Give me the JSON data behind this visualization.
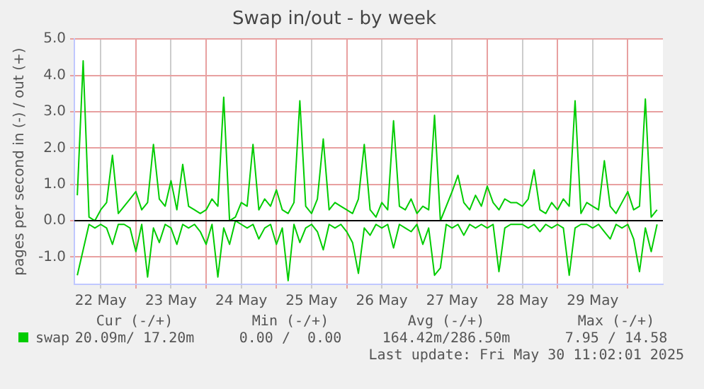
{
  "chart_data": {
    "type": "line",
    "title": "Swap in/out - by week",
    "ylabel": "pages per second in (-) / out (+)",
    "x": [
      "2025-05-22T04:00",
      "2025-05-22T06:00",
      "2025-05-22T08:00",
      "2025-05-22T10:00",
      "2025-05-22T12:00",
      "2025-05-22T14:00",
      "2025-05-22T16:00",
      "2025-05-22T18:00",
      "2025-05-22T20:00",
      "2025-05-22T22:00",
      "2025-05-23T00:00",
      "2025-05-23T02:00",
      "2025-05-23T04:00",
      "2025-05-23T06:00",
      "2025-05-23T08:00",
      "2025-05-23T10:00",
      "2025-05-23T12:00",
      "2025-05-23T14:00",
      "2025-05-23T16:00",
      "2025-05-23T18:00",
      "2025-05-23T20:00",
      "2025-05-23T22:00",
      "2025-05-24T00:00",
      "2025-05-24T02:00",
      "2025-05-24T04:00",
      "2025-05-24T06:00",
      "2025-05-24T08:00",
      "2025-05-24T10:00",
      "2025-05-24T12:00",
      "2025-05-24T14:00",
      "2025-05-24T16:00",
      "2025-05-24T18:00",
      "2025-05-24T20:00",
      "2025-05-24T22:00",
      "2025-05-25T00:00",
      "2025-05-25T02:00",
      "2025-05-25T04:00",
      "2025-05-25T06:00",
      "2025-05-25T08:00",
      "2025-05-25T10:00",
      "2025-05-25T12:00",
      "2025-05-25T14:00",
      "2025-05-25T16:00",
      "2025-05-25T18:00",
      "2025-05-25T20:00",
      "2025-05-25T22:00",
      "2025-05-26T00:00",
      "2025-05-26T02:00",
      "2025-05-26T04:00",
      "2025-05-26T06:00",
      "2025-05-26T08:00",
      "2025-05-26T10:00",
      "2025-05-26T12:00",
      "2025-05-26T14:00",
      "2025-05-26T16:00",
      "2025-05-26T18:00",
      "2025-05-26T20:00",
      "2025-05-26T22:00",
      "2025-05-27T00:00",
      "2025-05-27T02:00",
      "2025-05-27T04:00",
      "2025-05-27T06:00",
      "2025-05-27T08:00",
      "2025-05-27T10:00",
      "2025-05-27T12:00",
      "2025-05-27T14:00",
      "2025-05-27T16:00",
      "2025-05-27T18:00",
      "2025-05-27T20:00",
      "2025-05-27T22:00",
      "2025-05-28T00:00",
      "2025-05-28T02:00",
      "2025-05-28T04:00",
      "2025-05-28T06:00",
      "2025-05-28T08:00",
      "2025-05-28T10:00",
      "2025-05-28T12:00",
      "2025-05-28T14:00",
      "2025-05-28T16:00",
      "2025-05-28T18:00",
      "2025-05-28T20:00",
      "2025-05-28T22:00",
      "2025-05-29T00:00",
      "2025-05-29T02:00",
      "2025-05-29T04:00",
      "2025-05-29T06:00",
      "2025-05-29T08:00",
      "2025-05-29T10:00",
      "2025-05-29T12:00",
      "2025-05-29T14:00",
      "2025-05-29T16:00",
      "2025-05-29T18:00",
      "2025-05-29T20:00",
      "2025-05-29T22:00",
      "2025-05-30T00:00",
      "2025-05-30T02:00",
      "2025-05-30T04:00",
      "2025-05-30T06:00",
      "2025-05-30T08:00",
      "2025-05-30T10:00"
    ],
    "series": [
      {
        "name": "swap",
        "color": "#00cc00",
        "values": [
          0.7,
          4.4,
          0.1,
          0.0,
          0.3,
          0.5,
          1.8,
          0.2,
          0.4,
          0.6,
          0.8,
          0.3,
          0.5,
          2.1,
          0.6,
          0.4,
          1.1,
          0.3,
          1.55,
          0.4,
          0.3,
          0.2,
          0.3,
          0.6,
          0.4,
          3.4,
          0.0,
          0.1,
          0.5,
          0.4,
          2.1,
          0.3,
          0.6,
          0.4,
          0.85,
          0.3,
          0.2,
          0.5,
          3.3,
          0.4,
          0.2,
          0.6,
          2.25,
          0.3,
          0.5,
          0.4,
          0.3,
          0.2,
          0.6,
          2.1,
          0.3,
          0.1,
          0.5,
          0.3,
          2.75,
          0.4,
          0.3,
          0.6,
          0.2,
          0.4,
          0.3,
          2.9,
          0.0,
          0.4,
          0.8,
          1.25,
          0.5,
          0.3,
          0.7,
          0.4,
          0.95,
          0.5,
          0.3,
          0.6,
          0.5,
          0.5,
          0.4,
          0.6,
          1.4,
          0.3,
          0.2,
          0.5,
          0.3,
          0.6,
          0.4,
          3.3,
          0.2,
          0.5,
          0.4,
          0.3,
          1.65,
          0.4,
          0.2,
          0.5,
          0.8,
          0.3,
          0.4,
          3.35,
          0.1,
          0.3
        ]
      },
      {
        "color": "#00cc00",
        "values": [
          -1.5,
          -0.8,
          -0.1,
          -0.2,
          -0.1,
          -0.2,
          -0.65,
          -0.1,
          -0.1,
          -0.2,
          -0.85,
          -0.1,
          -1.55,
          -0.2,
          -0.6,
          -0.1,
          -0.2,
          -0.65,
          -0.1,
          -0.2,
          -0.1,
          -0.3,
          -0.65,
          -0.1,
          -1.55,
          -0.2,
          -0.65,
          0.0,
          -0.1,
          -0.2,
          -0.1,
          -0.5,
          -0.2,
          -0.1,
          -0.65,
          -0.2,
          -1.65,
          -0.1,
          -0.6,
          -0.2,
          -0.1,
          -0.3,
          -0.8,
          -0.1,
          -0.2,
          -0.1,
          -0.3,
          -0.6,
          -1.45,
          -0.2,
          -0.4,
          -0.1,
          -0.2,
          -0.1,
          -0.75,
          -0.1,
          -0.2,
          -0.3,
          -0.1,
          -0.65,
          -0.2,
          -1.5,
          -1.3,
          -0.1,
          -0.2,
          -0.1,
          -0.4,
          -0.1,
          -0.2,
          -0.1,
          -0.2,
          -0.1,
          -1.4,
          -0.2,
          -0.1,
          -0.1,
          -0.1,
          -0.2,
          -0.1,
          -0.3,
          -0.1,
          -0.2,
          -0.1,
          -0.2,
          -1.5,
          -0.2,
          -0.1,
          -0.1,
          -0.2,
          -0.1,
          -0.3,
          -0.5,
          -0.1,
          -0.2,
          -0.1,
          -0.5,
          -1.4,
          -0.2,
          -0.85,
          -0.1
        ]
      }
    ],
    "xlim": [
      "2025-05-22T03:00",
      "2025-05-30T12:00"
    ],
    "xticks": [
      {
        "value": "2025-05-22T12:00",
        "label": "22 May"
      },
      {
        "value": "2025-05-23T00:00",
        "label": null
      },
      {
        "value": "2025-05-23T12:00",
        "label": "23 May"
      },
      {
        "value": "2025-05-24T00:00",
        "label": null
      },
      {
        "value": "2025-05-24T12:00",
        "label": "24 May"
      },
      {
        "value": "2025-05-25T00:00",
        "label": null
      },
      {
        "value": "2025-05-25T12:00",
        "label": "25 May"
      },
      {
        "value": "2025-05-26T00:00",
        "label": null
      },
      {
        "value": "2025-05-26T12:00",
        "label": "26 May"
      },
      {
        "value": "2025-05-27T00:00",
        "label": null
      },
      {
        "value": "2025-05-27T12:00",
        "label": "27 May"
      },
      {
        "value": "2025-05-28T00:00",
        "label": null
      },
      {
        "value": "2025-05-28T12:00",
        "label": "28 May"
      },
      {
        "value": "2025-05-29T00:00",
        "label": null
      },
      {
        "value": "2025-05-29T12:00",
        "label": "29 May"
      },
      {
        "value": "2025-05-30T00:00",
        "label": null
      }
    ],
    "ylim": [
      -1.75,
      5.0
    ],
    "yticks": [
      {
        "value": -1,
        "label": "-1.0"
      },
      {
        "value": 0,
        "label": "0.0"
      },
      {
        "value": 1,
        "label": "1.0"
      },
      {
        "value": 2,
        "label": "2.0"
      },
      {
        "value": 3,
        "label": "3.0"
      },
      {
        "value": 4,
        "label": "4.0"
      },
      {
        "value": 5,
        "label": "5.0"
      }
    ],
    "ref_lines": [
      {
        "axis": "y",
        "value": 0,
        "color": "#000000"
      }
    ],
    "grid": true,
    "legend": "bottom",
    "annotations": [
      "Cur (-/+)",
      "Min (-/+)",
      "Avg (-/+)",
      "Max (-/+)",
      "20.09m/ 17.20m",
      "0.00 /  0.00",
      "164.42m/286.50m",
      "7.95 / 14.58",
      "Last update: Fri May 30 11:02:01 2025"
    ]
  }
}
